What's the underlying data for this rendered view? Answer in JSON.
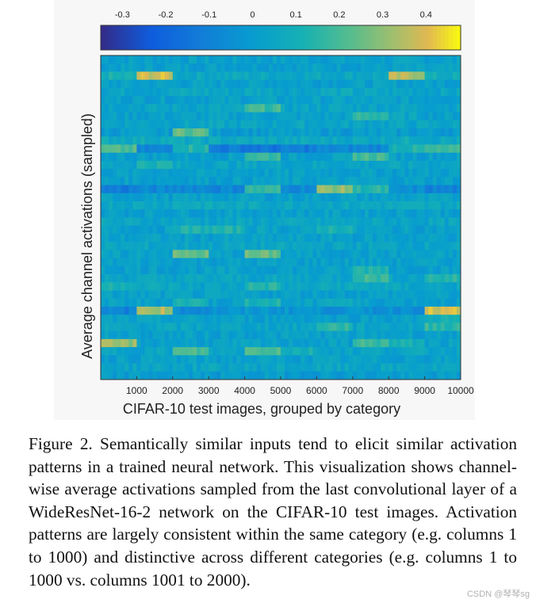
{
  "chart_data": {
    "type": "heatmap",
    "xlabel": "CIFAR-10 test images, grouped by category",
    "ylabel": "Average channel activations (sampled)",
    "xlim": [
      1,
      10000
    ],
    "x_ticks": [
      "1000",
      "2000",
      "3000",
      "4000",
      "5000",
      "6000",
      "7000",
      "8000",
      "9000",
      "10000"
    ],
    "colorbar": {
      "range": [
        -0.35,
        0.48
      ],
      "ticks": [
        "-0.3",
        "-0.2",
        "-0.1",
        "0",
        "0.1",
        "0.2",
        "0.3",
        "0.4"
      ],
      "tick_values": [
        -0.3,
        -0.2,
        -0.1,
        0,
        0.1,
        0.2,
        0.3,
        0.4
      ],
      "colormap": "parula"
    },
    "num_rows": 40,
    "num_categories": 10,
    "category_size": 1000,
    "rows": [
      [
        0.02,
        0.02,
        0.02,
        0.02,
        0.02,
        0.02,
        0.02,
        0.02,
        0.02,
        0.02
      ],
      [
        0.02,
        0.02,
        0.02,
        0.02,
        0.02,
        0.02,
        0.02,
        0.02,
        0.02,
        0.02
      ],
      [
        0.1,
        0.38,
        0.06,
        0.06,
        0.06,
        0.06,
        0.06,
        0.06,
        0.34,
        0.08
      ],
      [
        0.02,
        0.02,
        0.02,
        0.02,
        0.02,
        0.02,
        0.02,
        0.02,
        0.02,
        0.02
      ],
      [
        0.04,
        0.04,
        0.06,
        0.04,
        0.06,
        0.04,
        0.06,
        0.04,
        0.04,
        0.04
      ],
      [
        0.02,
        0.02,
        0.02,
        0.02,
        0.02,
        0.02,
        0.02,
        0.02,
        0.02,
        0.02
      ],
      [
        0.04,
        0.04,
        0.04,
        0.04,
        0.18,
        0.04,
        0.04,
        0.04,
        0.04,
        0.04
      ],
      [
        0.02,
        0.02,
        0.02,
        0.02,
        0.02,
        0.02,
        0.02,
        0.16,
        0.04,
        0.02
      ],
      [
        0.04,
        0.04,
        0.04,
        0.04,
        0.04,
        0.04,
        0.04,
        0.04,
        0.04,
        0.04
      ],
      [
        0.0,
        0.0,
        0.24,
        0.0,
        0.0,
        0.0,
        0.0,
        0.0,
        0.0,
        0.0
      ],
      [
        0.08,
        0.08,
        0.06,
        0.06,
        0.06,
        0.06,
        0.06,
        0.06,
        0.08,
        0.06
      ],
      [
        0.2,
        -0.1,
        0.14,
        -0.12,
        -0.14,
        -0.12,
        -0.08,
        -0.08,
        0.12,
        0.16
      ],
      [
        0.02,
        0.02,
        0.02,
        0.02,
        0.18,
        0.02,
        0.02,
        0.2,
        0.02,
        0.02
      ],
      [
        0.04,
        0.12,
        0.04,
        0.04,
        0.04,
        0.04,
        0.04,
        0.04,
        0.04,
        0.04
      ],
      [
        0.02,
        0.02,
        0.02,
        0.02,
        0.02,
        0.02,
        0.02,
        0.02,
        0.02,
        0.02
      ],
      [
        0.02,
        0.02,
        0.02,
        0.02,
        0.02,
        0.02,
        0.02,
        0.02,
        0.02,
        0.02
      ],
      [
        -0.12,
        -0.08,
        -0.06,
        -0.08,
        0.16,
        -0.06,
        0.3,
        0.14,
        -0.06,
        -0.1
      ],
      [
        0.02,
        0.02,
        0.02,
        0.02,
        0.02,
        0.02,
        0.02,
        0.02,
        0.02,
        0.02
      ],
      [
        0.06,
        0.06,
        0.08,
        0.06,
        0.06,
        0.06,
        0.06,
        0.06,
        0.06,
        0.06
      ],
      [
        0.02,
        0.02,
        0.02,
        0.02,
        0.02,
        0.02,
        0.02,
        0.02,
        0.02,
        0.02
      ],
      [
        0.04,
        0.04,
        0.04,
        0.04,
        0.04,
        0.04,
        0.04,
        0.04,
        0.04,
        0.04
      ],
      [
        0.02,
        0.02,
        0.12,
        0.12,
        0.04,
        0.02,
        0.12,
        0.02,
        0.02,
        0.02
      ],
      [
        0.02,
        0.02,
        0.02,
        0.02,
        0.02,
        0.02,
        0.02,
        0.02,
        0.02,
        0.02
      ],
      [
        0.04,
        0.04,
        0.04,
        0.04,
        0.04,
        0.04,
        0.04,
        0.04,
        0.04,
        0.04
      ],
      [
        0.02,
        0.04,
        0.24,
        0.02,
        0.24,
        0.02,
        0.02,
        0.02,
        0.02,
        0.02
      ],
      [
        0.02,
        0.02,
        0.02,
        0.02,
        0.02,
        0.02,
        0.02,
        0.02,
        0.02,
        0.02
      ],
      [
        0.02,
        0.02,
        0.02,
        0.02,
        0.02,
        0.02,
        0.02,
        0.14,
        0.02,
        0.02
      ],
      [
        0.04,
        0.04,
        0.04,
        0.04,
        0.04,
        0.04,
        0.04,
        0.18,
        0.04,
        0.14
      ],
      [
        0.12,
        0.06,
        0.04,
        0.04,
        0.14,
        0.04,
        0.06,
        0.06,
        0.04,
        0.04
      ],
      [
        0.02,
        0.02,
        0.02,
        0.02,
        0.02,
        0.02,
        0.02,
        0.02,
        0.02,
        0.02
      ],
      [
        0.02,
        0.02,
        0.12,
        0.02,
        0.12,
        0.02,
        0.08,
        0.02,
        0.02,
        0.02
      ],
      [
        -0.1,
        0.34,
        -0.06,
        -0.04,
        -0.02,
        -0.02,
        -0.04,
        -0.04,
        -0.04,
        0.38
      ],
      [
        0.02,
        0.02,
        0.02,
        0.02,
        0.02,
        0.02,
        0.02,
        0.02,
        0.02,
        0.1
      ],
      [
        0.04,
        0.04,
        0.04,
        0.04,
        0.04,
        0.04,
        0.16,
        0.04,
        0.04,
        0.16
      ],
      [
        0.02,
        0.02,
        0.02,
        0.02,
        0.02,
        0.02,
        0.02,
        0.02,
        0.02,
        0.02
      ],
      [
        0.3,
        0.02,
        0.02,
        0.02,
        0.02,
        0.02,
        0.02,
        0.18,
        0.1,
        0.02
      ],
      [
        0.04,
        0.04,
        0.2,
        0.04,
        0.22,
        0.1,
        0.04,
        0.04,
        0.04,
        0.04
      ],
      [
        0.02,
        0.02,
        0.02,
        0.02,
        0.02,
        0.02,
        0.02,
        0.02,
        0.02,
        0.02
      ],
      [
        0.04,
        0.04,
        0.04,
        0.04,
        0.04,
        0.04,
        0.04,
        0.04,
        0.04,
        0.04
      ],
      [
        0.0,
        0.0,
        0.0,
        0.0,
        0.0,
        0.0,
        0.0,
        0.0,
        0.0,
        0.0
      ]
    ]
  },
  "caption": "Figure 2. Semantically similar inputs tend to elicit similar activation patterns in a trained neural network. This visualization shows channel-wise average activations sampled from the last convolutional layer of a WideResNet-16-2 network on the CIFAR-10 test images. Activation patterns are largely consistent within the same category (e.g. columns 1 to 1000) and distinctive across different categories (e.g. columns 1 to 1000 vs. columns 1001 to 2000).",
  "watermark": "CSDN @琴琴sg"
}
